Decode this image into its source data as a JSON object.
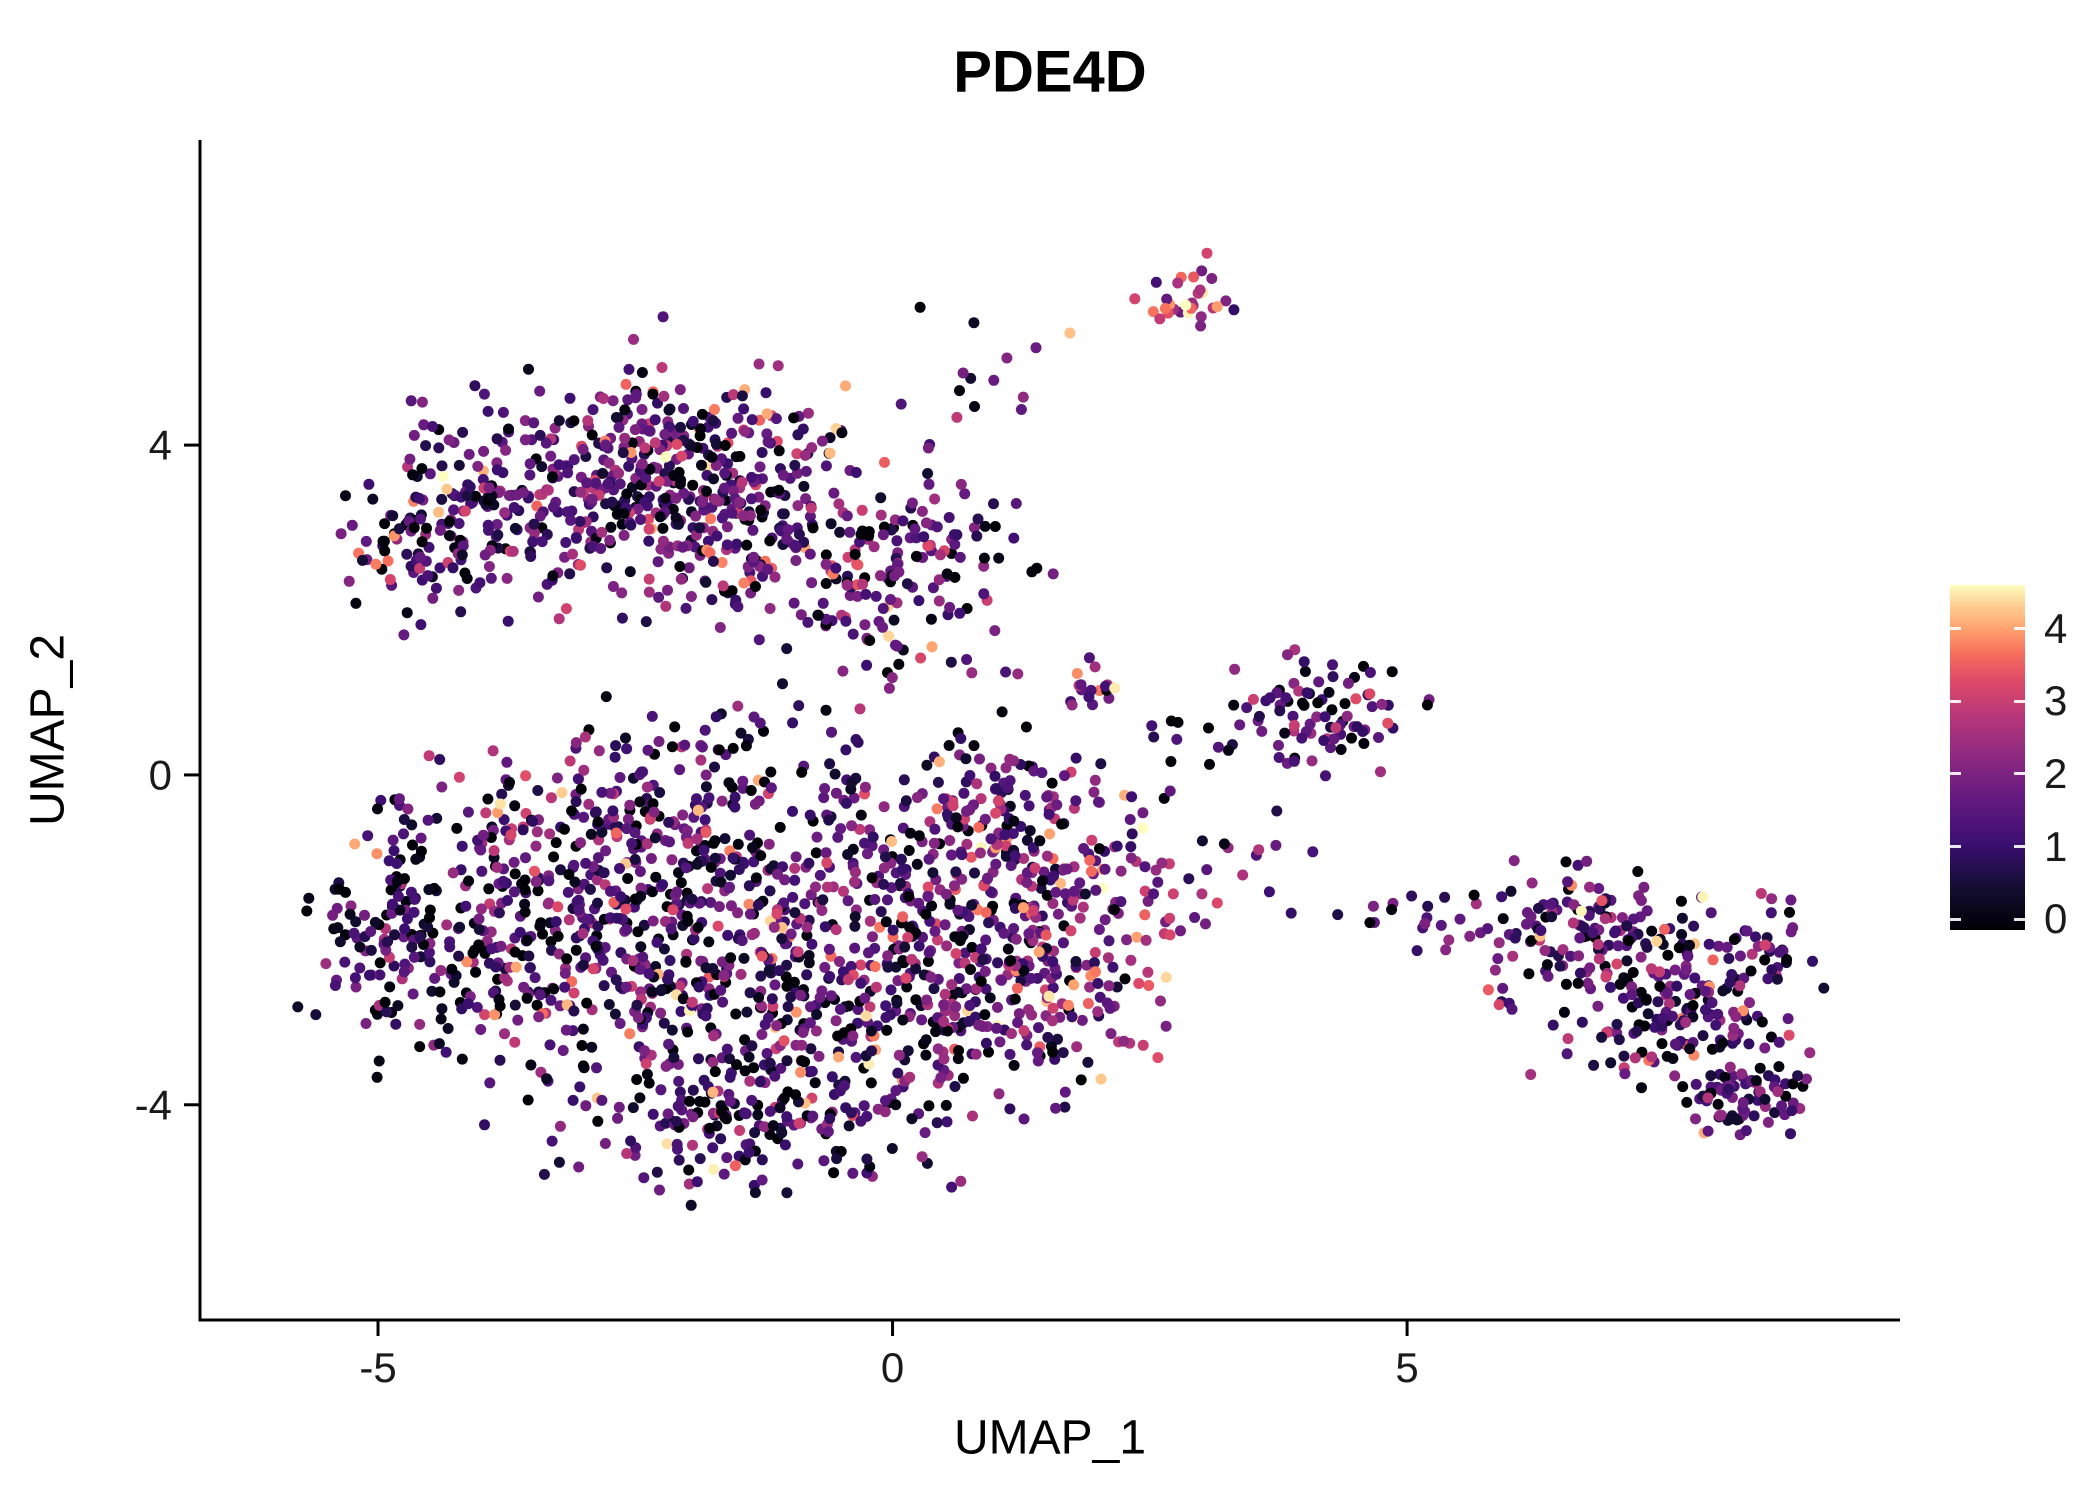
{
  "figure": {
    "title": "PDE4D"
  },
  "axes": {
    "x_label": "UMAP_1",
    "y_label": "UMAP_2",
    "x_ticks": [
      {
        "label": "-5",
        "value": -5
      },
      {
        "label": "0",
        "value": 0
      },
      {
        "label": "5",
        "value": 5
      }
    ],
    "y_ticks": [
      {
        "label": "4",
        "value": 4
      },
      {
        "label": "0",
        "value": 0
      },
      {
        "label": "-4",
        "value": -4
      }
    ]
  },
  "colorbar": {
    "ticks": [
      {
        "label": "4",
        "value": 4
      },
      {
        "label": "3",
        "value": 3
      },
      {
        "label": "2",
        "value": 2
      },
      {
        "label": "1",
        "value": 1
      },
      {
        "label": "0",
        "value": 0
      }
    ],
    "bar_vmin": -0.15,
    "bar_vmax": 4.6,
    "stops": [
      {
        "t": 0.0,
        "color": "#000004"
      },
      {
        "t": 0.12,
        "color": "#120d31"
      },
      {
        "t": 0.25,
        "color": "#3b0f70"
      },
      {
        "t": 0.38,
        "color": "#641a80"
      },
      {
        "t": 0.5,
        "color": "#8c2981"
      },
      {
        "t": 0.62,
        "color": "#b73779"
      },
      {
        "t": 0.72,
        "color": "#de4968"
      },
      {
        "t": 0.8,
        "color": "#f66e5c"
      },
      {
        "t": 0.87,
        "color": "#fe9f6d"
      },
      {
        "t": 0.94,
        "color": "#fece91"
      },
      {
        "t": 1.0,
        "color": "#fcfdbf"
      }
    ]
  },
  "chart_data": {
    "type": "scatter",
    "title": "PDE4D",
    "xlabel": "UMAP_1",
    "ylabel": "UMAP_2",
    "xlim": [
      -6.73,
      9.79
    ],
    "ylim": [
      -6.61,
      7.7
    ],
    "grid": false,
    "legend_position": "right-colorbar",
    "color_scale": "magma",
    "color_range": [
      0,
      4.5
    ],
    "point_radius_px": 5.5,
    "seed": 42,
    "clusters": [
      {
        "name": "topleft-a",
        "n": 200,
        "cx": -3.6,
        "cy": 3.2,
        "sx": 0.75,
        "sy": 0.55,
        "expr_mean": 1.5,
        "expr_sd": 0.8
      },
      {
        "name": "topleft-b",
        "n": 260,
        "cx": -2.1,
        "cy": 3.9,
        "sx": 0.85,
        "sy": 0.5,
        "expr_mean": 1.5,
        "expr_sd": 0.8
      },
      {
        "name": "topleft-c",
        "n": 190,
        "cx": -1.4,
        "cy": 2.9,
        "sx": 0.8,
        "sy": 0.55,
        "expr_mean": 1.5,
        "expr_sd": 0.85
      },
      {
        "name": "topleft-d",
        "n": 150,
        "cx": -0.1,
        "cy": 2.3,
        "sx": 0.6,
        "sy": 0.65,
        "expr_mean": 1.6,
        "expr_sd": 0.9
      },
      {
        "name": "topleft-spur",
        "n": 70,
        "cx": -4.5,
        "cy": 2.8,
        "sx": 0.35,
        "sy": 0.4,
        "expr_mean": 1.4,
        "expr_sd": 0.8
      },
      {
        "name": "main-left",
        "n": 330,
        "cx": -3.6,
        "cy": -1.9,
        "sx": 0.85,
        "sy": 0.85,
        "expr_mean": 1.3,
        "expr_sd": 0.85
      },
      {
        "name": "main-upper",
        "n": 240,
        "cx": -2.2,
        "cy": -0.6,
        "sx": 0.85,
        "sy": 0.65,
        "expr_mean": 1.4,
        "expr_sd": 0.85
      },
      {
        "name": "main-center",
        "n": 290,
        "cx": -1.6,
        "cy": -2.7,
        "sx": 0.95,
        "sy": 0.8,
        "expr_mean": 1.3,
        "expr_sd": 0.85
      },
      {
        "name": "main-mid",
        "n": 240,
        "cx": -0.3,
        "cy": -1.5,
        "sx": 0.85,
        "sy": 0.85,
        "expr_mean": 1.4,
        "expr_sd": 0.9
      },
      {
        "name": "main-bottom",
        "n": 170,
        "cx": -1.2,
        "cy": -4.2,
        "sx": 0.85,
        "sy": 0.45,
        "expr_mean": 1.3,
        "expr_sd": 0.8
      },
      {
        "name": "main-right",
        "n": 200,
        "cx": 0.8,
        "cy": -2.7,
        "sx": 0.75,
        "sy": 0.75,
        "expr_mean": 1.6,
        "expr_sd": 0.95,
        "hot_frac": 0.08
      },
      {
        "name": "main-hot-arm",
        "n": 190,
        "cx": 1.7,
        "cy": -1.7,
        "sx": 0.55,
        "sy": 0.75,
        "expr_mean": 2.1,
        "expr_sd": 0.95,
        "hot_frac": 0.12,
        "zero_frac": 0.05
      },
      {
        "name": "main-upper-right",
        "n": 110,
        "cx": 1.0,
        "cy": -0.5,
        "sx": 0.55,
        "sy": 0.45,
        "expr_mean": 1.7,
        "expr_sd": 0.9
      },
      {
        "name": "main-left-edge",
        "n": 80,
        "cx": -4.9,
        "cy": -1.7,
        "sx": 0.3,
        "sy": 0.7,
        "expr_mean": 1.1,
        "expr_sd": 0.8,
        "zero_frac": 0.2
      },
      {
        "name": "top-small-hot",
        "n": 30,
        "cx": 2.85,
        "cy": 5.8,
        "sx": 0.2,
        "sy": 0.18,
        "expr_mean": 2.7,
        "expr_sd": 0.9,
        "hot_frac": 0.2,
        "zero_frac": 0.02
      },
      {
        "name": "trail-up",
        "n": 14,
        "cx": 0.9,
        "cy": 4.8,
        "sx": 0.45,
        "sy": 0.35,
        "expr_mean": 1.8,
        "expr_sd": 0.9
      },
      {
        "name": "mid-pair",
        "n": 18,
        "cx": 1.95,
        "cy": 1.1,
        "sx": 0.17,
        "sy": 0.22,
        "expr_mean": 2.0,
        "expr_sd": 0.9,
        "hot_frac": 0.15,
        "zero_frac": 0.03
      },
      {
        "name": "mid-single",
        "n": 5,
        "cx": 2.5,
        "cy": 0.62,
        "sx": 0.15,
        "sy": 0.12,
        "expr_mean": 1.2,
        "expr_sd": 0.7
      },
      {
        "name": "right-mid",
        "n": 85,
        "cx": 4.2,
        "cy": 0.8,
        "sx": 0.4,
        "sy": 0.3,
        "expr_mean": 1.6,
        "expr_sd": 0.9
      },
      {
        "name": "right-mid-out",
        "n": 6,
        "cx": 3.4,
        "cy": 0.45,
        "sx": 0.25,
        "sy": 0.2,
        "expr_mean": 1.2,
        "expr_sd": 0.8
      },
      {
        "name": "bridge-a",
        "n": 16,
        "cx": 3.3,
        "cy": -0.9,
        "sx": 0.55,
        "sy": 0.35,
        "expr_mean": 1.5,
        "expr_sd": 0.9
      },
      {
        "name": "bridge-b",
        "n": 14,
        "cx": 5.1,
        "cy": -1.65,
        "sx": 0.45,
        "sy": 0.15,
        "expr_mean": 1.5,
        "expr_sd": 0.9
      },
      {
        "name": "farright-main",
        "n": 170,
        "cx": 6.8,
        "cy": -2.0,
        "sx": 0.6,
        "sy": 0.4,
        "expr_mean": 1.4,
        "expr_sd": 0.85
      },
      {
        "name": "farright-lower",
        "n": 140,
        "cx": 7.7,
        "cy": -3.0,
        "sx": 0.5,
        "sy": 0.45,
        "expr_mean": 1.4,
        "expr_sd": 0.85
      },
      {
        "name": "farright-tail",
        "n": 70,
        "cx": 8.3,
        "cy": -3.9,
        "sx": 0.3,
        "sy": 0.22,
        "expr_mean": 1.3,
        "expr_sd": 0.85
      },
      {
        "name": "farright-tip",
        "n": 30,
        "cx": 8.5,
        "cy": -2.1,
        "sx": 0.18,
        "sy": 0.3,
        "expr_mean": 1.5,
        "expr_sd": 0.85
      }
    ]
  }
}
